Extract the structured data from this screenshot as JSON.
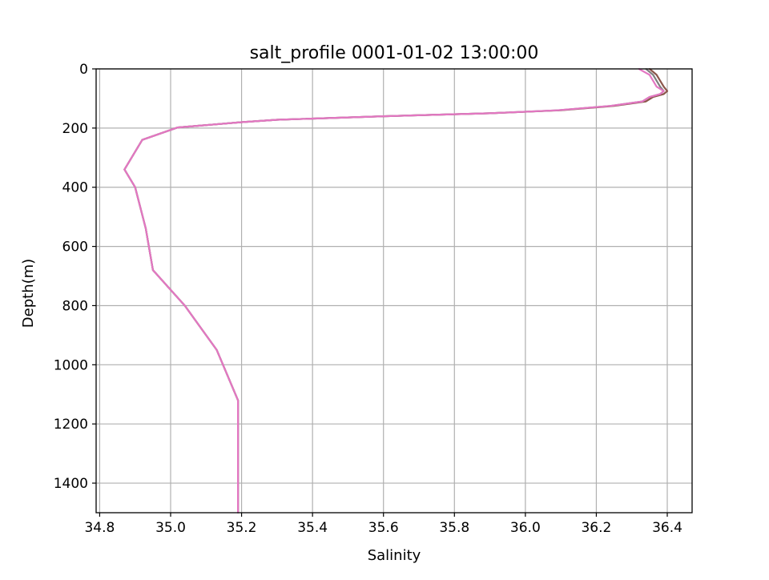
{
  "chart_data": {
    "type": "line",
    "title": "salt_profile 0001-01-02 13:00:00",
    "xlabel": "Salinity",
    "ylabel": "Depth(m)",
    "xlim": [
      34.79,
      36.47
    ],
    "ylim": [
      1500,
      0
    ],
    "y_inverted": true,
    "grid": true,
    "legend": "none",
    "xticks": [
      "34.8",
      "35.0",
      "35.2",
      "35.4",
      "35.6",
      "35.8",
      "36.0",
      "36.2",
      "36.4"
    ],
    "yticks": [
      "0",
      "200",
      "400",
      "600",
      "800",
      "1000",
      "1200",
      "1400"
    ],
    "series": [
      {
        "color": "#8c564b",
        "values": [
          [
            36.35,
            0
          ],
          [
            36.37,
            20
          ],
          [
            36.39,
            60
          ],
          [
            36.4,
            75
          ],
          [
            36.39,
            85
          ],
          [
            36.36,
            95
          ],
          [
            36.34,
            110
          ],
          [
            36.25,
            125
          ],
          [
            36.1,
            140
          ],
          [
            35.9,
            150
          ],
          [
            35.6,
            160
          ],
          [
            35.3,
            172
          ],
          [
            35.2,
            180
          ],
          [
            35.1,
            190
          ],
          [
            35.02,
            198
          ],
          [
            34.92,
            240
          ],
          [
            34.87,
            340
          ],
          [
            34.9,
            400
          ],
          [
            34.93,
            540
          ],
          [
            34.95,
            680
          ],
          [
            35.04,
            800
          ],
          [
            35.13,
            950
          ],
          [
            35.19,
            1120
          ],
          [
            35.19,
            1500
          ]
        ]
      },
      {
        "color": "#7f7f7f",
        "values": [
          [
            36.34,
            0
          ],
          [
            36.36,
            20
          ],
          [
            36.38,
            60
          ],
          [
            36.39,
            75
          ],
          [
            36.38,
            85
          ],
          [
            36.35,
            95
          ],
          [
            36.33,
            110
          ],
          [
            36.24,
            125
          ],
          [
            36.09,
            140
          ],
          [
            35.9,
            150
          ],
          [
            35.6,
            160
          ],
          [
            35.3,
            172
          ],
          [
            35.2,
            180
          ],
          [
            35.1,
            190
          ],
          [
            35.02,
            198
          ],
          [
            34.92,
            240
          ],
          [
            34.87,
            340
          ],
          [
            34.9,
            400
          ],
          [
            34.93,
            540
          ],
          [
            34.95,
            680
          ],
          [
            35.04,
            800
          ],
          [
            35.13,
            950
          ],
          [
            35.19,
            1120
          ],
          [
            35.19,
            1500
          ]
        ]
      },
      {
        "color": "#e377c2",
        "values": [
          [
            36.32,
            0
          ],
          [
            36.35,
            20
          ],
          [
            36.37,
            60
          ],
          [
            36.39,
            75
          ],
          [
            36.38,
            85
          ],
          [
            36.35,
            95
          ],
          [
            36.33,
            110
          ],
          [
            36.24,
            125
          ],
          [
            36.09,
            140
          ],
          [
            35.9,
            150
          ],
          [
            35.6,
            160
          ],
          [
            35.3,
            172
          ],
          [
            35.2,
            180
          ],
          [
            35.1,
            190
          ],
          [
            35.02,
            198
          ],
          [
            34.92,
            240
          ],
          [
            34.87,
            340
          ],
          [
            34.9,
            400
          ],
          [
            34.93,
            540
          ],
          [
            34.95,
            680
          ],
          [
            35.04,
            800
          ],
          [
            35.13,
            950
          ],
          [
            35.19,
            1120
          ],
          [
            35.19,
            1500
          ]
        ]
      }
    ]
  }
}
